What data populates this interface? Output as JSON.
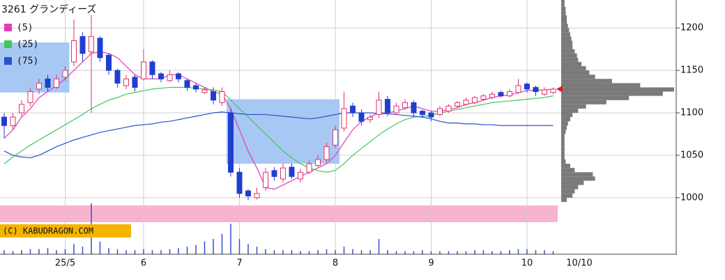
{
  "chart_data": {
    "type": "candlestick",
    "title": "3261 グランディーズ",
    "open": [
      1095,
      1085,
      1100,
      1112,
      1128,
      1140,
      1130,
      1142,
      1160,
      1190,
      1172,
      1188,
      1168,
      1150,
      1132,
      1142,
      1140,
      1160,
      1146,
      1138,
      1146,
      1138,
      1132,
      1124,
      1125,
      1112,
      1100,
      1030,
      1008,
      1000,
      1012,
      1032,
      1022,
      1036,
      1022,
      1030,
      1038,
      1045,
      1062,
      1082,
      1108,
      1100,
      1092,
      1098,
      1116,
      1100,
      1106,
      1112,
      1102,
      1100,
      1098,
      1102,
      1108,
      1110,
      1112,
      1116,
      1118,
      1124,
      1120,
      1124,
      1134,
      1130,
      1122,
      1124
    ],
    "high": [
      1100,
      1100,
      1115,
      1130,
      1140,
      1145,
      1145,
      1155,
      1210,
      1195,
      1215,
      1190,
      1170,
      1152,
      1145,
      1145,
      1175,
      1162,
      1148,
      1150,
      1148,
      1140,
      1135,
      1130,
      1130,
      1130,
      1105,
      1035,
      1010,
      1012,
      1035,
      1036,
      1040,
      1040,
      1034,
      1044,
      1050,
      1065,
      1085,
      1125,
      1112,
      1104,
      1098,
      1125,
      1120,
      1112,
      1116,
      1115,
      1104,
      1102,
      1108,
      1110,
      1114,
      1118,
      1120,
      1122,
      1125,
      1126,
      1128,
      1140,
      1136,
      1132,
      1130,
      1130
    ],
    "low": [
      1070,
      1080,
      1095,
      1108,
      1122,
      1125,
      1128,
      1138,
      1155,
      1160,
      1100,
      1160,
      1145,
      1130,
      1128,
      1125,
      1138,
      1140,
      1136,
      1136,
      1136,
      1126,
      1124,
      1122,
      1110,
      1108,
      1025,
      1000,
      997,
      998,
      1008,
      1020,
      1018,
      1022,
      1018,
      1028,
      1036,
      1042,
      1058,
      1078,
      1095,
      1085,
      1088,
      1094,
      1096,
      1098,
      1104,
      1096,
      1094,
      1090,
      1096,
      1100,
      1106,
      1108,
      1110,
      1114,
      1116,
      1118,
      1118,
      1122,
      1124,
      1120,
      1120,
      1122
    ],
    "close": [
      1085,
      1095,
      1110,
      1125,
      1135,
      1130,
      1140,
      1150,
      1185,
      1170,
      1190,
      1165,
      1150,
      1135,
      1140,
      1130,
      1160,
      1145,
      1140,
      1145,
      1140,
      1130,
      1128,
      1127,
      1115,
      1125,
      1030,
      1005,
      1002,
      1005,
      1030,
      1025,
      1035,
      1025,
      1030,
      1040,
      1045,
      1060,
      1080,
      1105,
      1100,
      1090,
      1095,
      1115,
      1100,
      1108,
      1112,
      1100,
      1098,
      1095,
      1105,
      1108,
      1112,
      1115,
      1118,
      1120,
      1122,
      1120,
      1125,
      1132,
      1128,
      1125,
      1127,
      1128
    ],
    "up_color": "#e2306a",
    "down_color": "#1f3fcf",
    "series": [
      {
        "name": "(5)",
        "color": "#e23cb4",
        "values": [
          1070,
          1080,
          1095,
          1105,
          1118,
          1125,
          1132,
          1140,
          1150,
          1160,
          1170,
          1172,
          1170,
          1165,
          1155,
          1145,
          1140,
          1140,
          1140,
          1145,
          1145,
          1140,
          1135,
          1130,
          1125,
          1122,
          1105,
          1080,
          1055,
          1035,
          1012,
          1010,
          1015,
          1020,
          1025,
          1030,
          1035,
          1040,
          1050,
          1065,
          1080,
          1090,
          1095,
          1100,
          1100,
          1102,
          1105,
          1108,
          1105,
          1102,
          1102,
          1104,
          1106,
          1110,
          1112,
          1115,
          1118,
          1120,
          1121,
          1124,
          1126,
          1127,
          1127,
          1128
        ]
      },
      {
        "name": "(25)",
        "color": "#3cc85a",
        "values": [
          1040,
          1048,
          1055,
          1062,
          1068,
          1074,
          1080,
          1086,
          1092,
          1098,
          1105,
          1110,
          1115,
          1118,
          1122,
          1124,
          1126,
          1128,
          1129,
          1130,
          1130,
          1130,
          1129,
          1128,
          1127,
          1125,
          1115,
          1105,
          1095,
          1085,
          1075,
          1065,
          1055,
          1047,
          1040,
          1035,
          1032,
          1030,
          1032,
          1040,
          1050,
          1058,
          1066,
          1074,
          1081,
          1087,
          1092,
          1095,
          1096,
          1097,
          1100,
          1102,
          1104,
          1106,
          1108,
          1110,
          1112,
          1113,
          1114,
          1115,
          1116,
          1117,
          1118,
          1120
        ]
      },
      {
        "name": "(75)",
        "color": "#2a4fd0",
        "values": [
          1055,
          1050,
          1048,
          1047,
          1050,
          1055,
          1060,
          1064,
          1068,
          1071,
          1074,
          1077,
          1079,
          1081,
          1083,
          1085,
          1086,
          1087,
          1089,
          1090,
          1092,
          1094,
          1096,
          1098,
          1100,
          1101,
          1100,
          1099,
          1098,
          1098,
          1098,
          1097,
          1096,
          1095,
          1094,
          1093,
          1094,
          1096,
          1098,
          1100,
          1100,
          1100,
          1100,
          1099,
          1099,
          1098,
          1097,
          1096,
          1095,
          1093,
          1090,
          1088,
          1088,
          1087,
          1087,
          1086,
          1086,
          1085,
          1085,
          1085,
          1085,
          1085,
          1085,
          1085
        ]
      }
    ],
    "ylim": [
      990,
      1233
    ],
    "yticks": [
      1000,
      1050,
      1100,
      1150,
      1200
    ],
    "xticks": [
      {
        "value": 7,
        "label": "25/5"
      },
      {
        "value": 16,
        "label": "6"
      },
      {
        "value": 27,
        "label": "7"
      },
      {
        "value": 38,
        "label": "8"
      },
      {
        "value": 49,
        "label": "9"
      },
      {
        "value": 60,
        "label": "10"
      },
      {
        "value": 66,
        "label": "10/10"
      }
    ],
    "grid": true,
    "boxes": [
      {
        "start": 0,
        "end": 7,
        "low": 1124,
        "high": 1183
      },
      {
        "start": 26,
        "end": 38,
        "low": 1040,
        "high": 1116
      }
    ],
    "box_color": "#a8c8f4",
    "volume": {
      "color": "#3050d0",
      "ylim": [
        0,
        100
      ],
      "values": [
        8,
        6,
        8,
        10,
        10,
        12,
        8,
        10,
        20,
        15,
        100,
        25,
        12,
        10,
        8,
        8,
        10,
        8,
        8,
        10,
        12,
        15,
        18,
        25,
        30,
        40,
        60,
        30,
        20,
        15,
        10,
        8,
        8,
        8,
        6,
        6,
        8,
        10,
        8,
        15,
        10,
        8,
        8,
        30,
        8,
        6,
        6,
        6,
        8,
        6,
        6,
        6,
        6,
        6,
        8,
        8,
        6,
        6,
        8,
        10,
        10,
        8,
        8,
        6
      ]
    },
    "volume_profile": {
      "color": "#7a7a7a",
      "xlim": [
        0,
        100
      ],
      "bins": [
        995,
        1000,
        1005,
        1010,
        1015,
        1020,
        1025,
        1030,
        1035,
        1040,
        1045,
        1050,
        1055,
        1060,
        1065,
        1070,
        1075,
        1080,
        1085,
        1090,
        1095,
        1100,
        1105,
        1110,
        1115,
        1120,
        1125,
        1130,
        1135,
        1140,
        1145,
        1150,
        1155,
        1160,
        1165,
        1170,
        1175,
        1180,
        1185,
        1190,
        1195,
        1200,
        1205,
        1210,
        1215,
        1220,
        1225,
        1230,
        1235
      ],
      "values": [
        5,
        10,
        12,
        15,
        20,
        30,
        28,
        12,
        8,
        4,
        3,
        3,
        3,
        3,
        3,
        3,
        4,
        5,
        6,
        8,
        10,
        15,
        22,
        40,
        60,
        90,
        100,
        70,
        45,
        30,
        25,
        22,
        18,
        15,
        14,
        12,
        10,
        10,
        9,
        8,
        7,
        6,
        5,
        5,
        4,
        4,
        3,
        3
      ]
    },
    "copyright": "(C) KABUDRAGON.COM"
  }
}
